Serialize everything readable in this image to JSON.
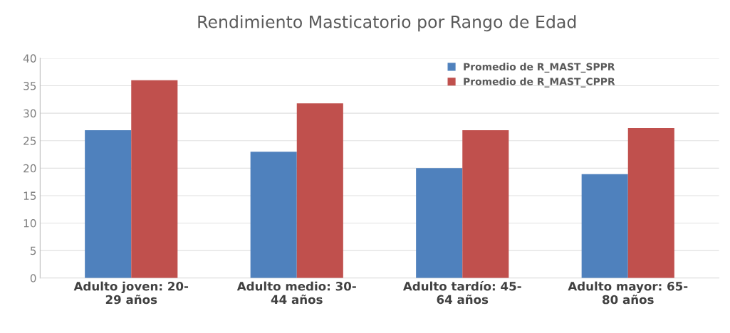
{
  "chart_data": {
    "type": "bar",
    "title": "Rendimiento Masticatorio por Rango de Edad",
    "categories": [
      "Adulto joven: 20-\n29 años",
      "Adulto medio: 30-\n44 años",
      "Adulto tardío: 45-\n64 años",
      "Adulto mayor: 65-\n80 años"
    ],
    "series": [
      {
        "name": "Promedio de R_MAST_SPPR",
        "color": "#4f81bd",
        "values": [
          26.9,
          23.0,
          20.0,
          18.9
        ]
      },
      {
        "name": "Promedio de R_MAST_CPPR",
        "color": "#c0504d",
        "values": [
          36.0,
          31.8,
          26.9,
          27.3
        ]
      }
    ],
    "ylim": [
      0,
      40
    ],
    "yticks": [
      0,
      5,
      10,
      15,
      20,
      25,
      30,
      35,
      40
    ],
    "grid": "y",
    "legend": "top right"
  }
}
